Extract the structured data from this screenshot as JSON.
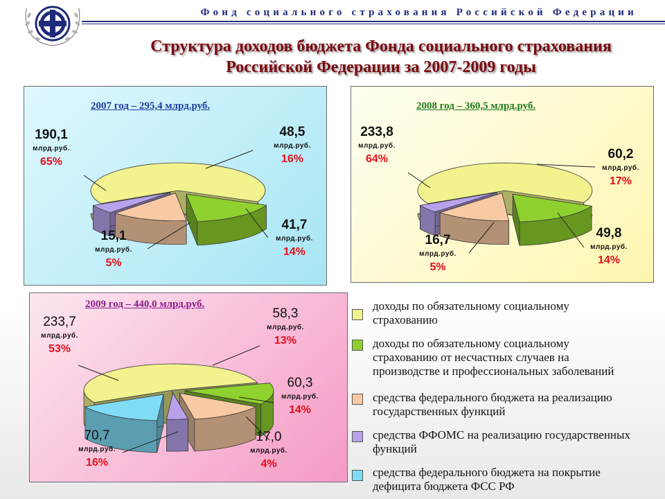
{
  "header": {
    "organization": "Фонд социального страхования Российской Федерации",
    "title_line1": "Структура доходов бюджета Фонда социального страхования",
    "title_line2": "Российской Федерации за 2007-2009 годы"
  },
  "colors": {
    "compulsory": "#f2f28f",
    "accident": "#8fd12e",
    "federal": "#f8caa3",
    "ffoms": "#b8a2ec",
    "deficit": "#7fdcf6"
  },
  "legend": [
    {
      "key": "compulsory",
      "text": "доходы по обязательному социальному",
      "text2": "страхованию",
      "text3": ""
    },
    {
      "key": "accident",
      "text": "доходы по обязательному социальному",
      "text2": "страхованию от несчастных случаев на",
      "text3": "производстве и профессиональных заболеваний"
    },
    {
      "key": "federal",
      "text": "средства федерального бюджета на реализацию",
      "text2": "государственных функций",
      "text3": ""
    },
    {
      "key": "ffoms",
      "text": "средства ФФОМС на реализацию государственных",
      "text2": "функций",
      "text3": ""
    },
    {
      "key": "deficit",
      "text": "средства федерального бюджета на покрытие",
      "text2": "дефицита бюджета ФСС РФ",
      "text3": ""
    }
  ],
  "chart_data": [
    {
      "type": "pie",
      "title": "2007 год – 295,4 млрд.руб.",
      "unit": "млрд.руб.",
      "slices": [
        {
          "key": "compulsory",
          "value": 190.1,
          "value_label": "190,1",
          "percent": "65%"
        },
        {
          "key": "accident",
          "value": 48.5,
          "value_label": "48,5",
          "percent": "16%"
        },
        {
          "key": "federal",
          "value": 41.7,
          "value_label": "41,7",
          "percent": "14%"
        },
        {
          "key": "ffoms",
          "value": 15.1,
          "value_label": "15,1",
          "percent": "5%"
        }
      ]
    },
    {
      "type": "pie",
      "title": "2008 год – 360,5 млрд.руб.",
      "unit": "млрд.руб.",
      "slices": [
        {
          "key": "compulsory",
          "value": 233.8,
          "value_label": "233,8",
          "percent": "64%"
        },
        {
          "key": "accident",
          "value": 60.2,
          "value_label": "60,2",
          "percent": "17%"
        },
        {
          "key": "federal",
          "value": 49.8,
          "value_label": "49,8",
          "percent": "14%"
        },
        {
          "key": "ffoms",
          "value": 16.7,
          "value_label": "16,7",
          "percent": "5%"
        }
      ]
    },
    {
      "type": "pie",
      "title": "2009 год – 440,0 млрд.руб.",
      "unit": "млрд.руб.",
      "slices": [
        {
          "key": "compulsory",
          "value": 233.7,
          "value_label": "233,7",
          "percent": "53%"
        },
        {
          "key": "accident",
          "value": 58.3,
          "value_label": "58,3",
          "percent": "13%"
        },
        {
          "key": "federal",
          "value": 60.3,
          "value_label": "60,3",
          "percent": "14%"
        },
        {
          "key": "ffoms",
          "value": 17.0,
          "value_label": "17,0",
          "percent": "4%"
        },
        {
          "key": "deficit",
          "value": 70.7,
          "value_label": "70,7",
          "percent": "16%"
        }
      ]
    }
  ]
}
